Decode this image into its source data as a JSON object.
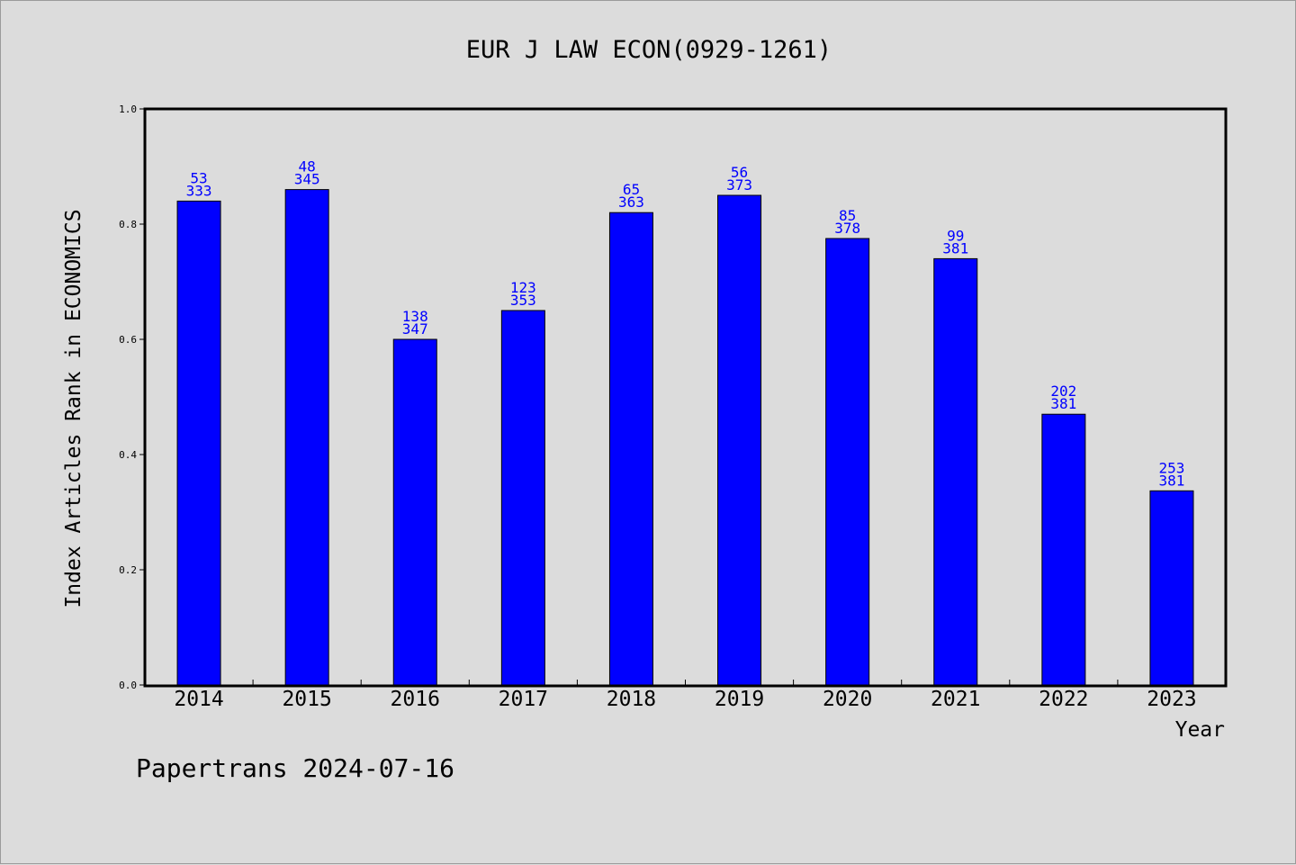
{
  "chart_data": {
    "type": "bar",
    "title": "EUR J LAW ECON(0929-1261)",
    "xlabel": "Year",
    "ylabel": "Index Articles Rank in ECONOMICS",
    "ylim": [
      0,
      1.0
    ],
    "yticks": [
      "0.0",
      "0.2",
      "0.4",
      "0.6",
      "0.8",
      "1.0"
    ],
    "grid": false,
    "categories": [
      "2014",
      "2015",
      "2016",
      "2017",
      "2018",
      "2019",
      "2020",
      "2021",
      "2022",
      "2023"
    ],
    "values": [
      0.84,
      0.86,
      0.6,
      0.65,
      0.82,
      0.85,
      0.775,
      0.74,
      0.47,
      0.337
    ],
    "rank_labels": [
      "53",
      "48",
      "138",
      "123",
      "65",
      "56",
      "85",
      "99",
      "202",
      "253"
    ],
    "total_labels": [
      "333",
      "345",
      "347",
      "353",
      "363",
      "373",
      "378",
      "381",
      "381",
      "381"
    ],
    "bar_color": "#0000ff",
    "label_color": "#0000ff"
  },
  "footer": {
    "text": "Papertrans 2024-07-16"
  }
}
